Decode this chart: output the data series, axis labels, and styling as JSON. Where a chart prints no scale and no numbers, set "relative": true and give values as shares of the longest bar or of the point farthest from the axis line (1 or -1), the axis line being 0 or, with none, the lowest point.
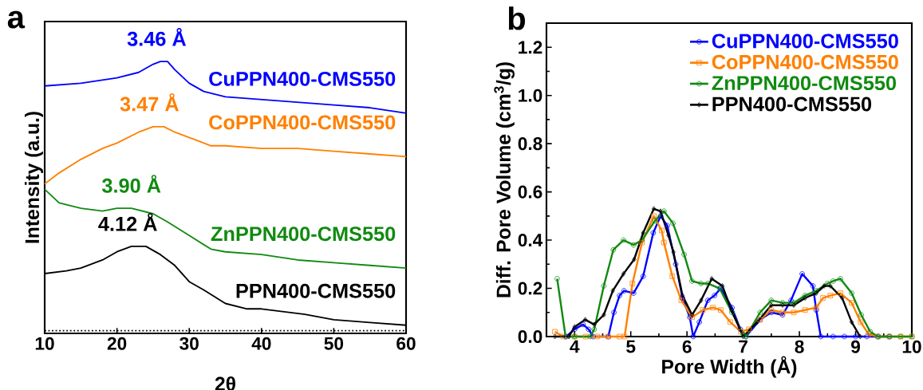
{
  "chart_data": [
    {
      "type": "line",
      "title": "a",
      "xlabel": "2θ",
      "ylabel": "Intensity (a.u.)",
      "relative": true,
      "xlim": [
        10,
        60
      ],
      "xticks": [
        10,
        20,
        30,
        40,
        50,
        60
      ],
      "legend": false,
      "marker": "none",
      "ref_lines": [
        {
          "axis": "y",
          "value": 0.01,
          "line_style": "dotted",
          "color": "#000000"
        }
      ],
      "series": [
        {
          "name": "CuPPN400-CMS550",
          "color": "#0000ff",
          "x": [
            10,
            15,
            20,
            23,
            25,
            26,
            27,
            28,
            30,
            32,
            35,
            40,
            45,
            50,
            55,
            60
          ],
          "values": [
            0.91,
            0.92,
            0.94,
            0.96,
            0.99,
            1.0,
            1.0,
            0.97,
            0.92,
            0.89,
            0.87,
            0.86,
            0.85,
            0.84,
            0.83,
            0.81
          ]
        },
        {
          "name": "CoPPN400-CMS550",
          "color": "#ff8000",
          "x": [
            10,
            12,
            15,
            18,
            20,
            23,
            25,
            26.5,
            28,
            30,
            33,
            35,
            40,
            45,
            50,
            55,
            60
          ],
          "values": [
            0.55,
            0.59,
            0.64,
            0.68,
            0.7,
            0.74,
            0.76,
            0.76,
            0.74,
            0.72,
            0.69,
            0.69,
            0.68,
            0.68,
            0.67,
            0.66,
            0.65
          ]
        },
        {
          "name": "ZnPPN400-CMS550",
          "color": "#108a10",
          "x": [
            10,
            12,
            15,
            18,
            20,
            22,
            25,
            27,
            30,
            33,
            35,
            40,
            45,
            50,
            55,
            60
          ],
          "values": [
            0.53,
            0.48,
            0.46,
            0.45,
            0.46,
            0.46,
            0.44,
            0.41,
            0.36,
            0.31,
            0.3,
            0.29,
            0.27,
            0.26,
            0.25,
            0.24
          ]
        },
        {
          "name": "PPN400-CMS550",
          "color": "#000000",
          "x": [
            10,
            13,
            15,
            18,
            20,
            22,
            24,
            26,
            28,
            30,
            32,
            35,
            38,
            40,
            43,
            46,
            50,
            55,
            60
          ],
          "values": [
            0.22,
            0.23,
            0.24,
            0.27,
            0.3,
            0.32,
            0.32,
            0.29,
            0.25,
            0.19,
            0.16,
            0.11,
            0.09,
            0.09,
            0.08,
            0.07,
            0.05,
            0.04,
            0.03
          ]
        }
      ],
      "annotations": [
        {
          "text": "3.46 Å",
          "x": 25.5,
          "y": 1.0
        },
        {
          "text": "3.47 Å",
          "x": 24.5,
          "y": 0.76
        },
        {
          "text": "3.90 Å",
          "x": 22,
          "y": 0.46
        },
        {
          "text": "4.12 Å",
          "x": 21.5,
          "y": 0.32
        }
      ]
    },
    {
      "type": "line",
      "title": "b",
      "xlabel": "Pore Width (Å)",
      "ylabel": "Diff. Pore Volume (cm$^{3}$/g)",
      "xlim": [
        3.5,
        10
      ],
      "ylim": [
        0,
        1.3
      ],
      "xticks": [
        4,
        5,
        6,
        7,
        8,
        9,
        10
      ],
      "yticks": [
        {
          "value": 0,
          "label": "0.0"
        },
        0.2,
        0.4,
        0.6,
        0.8,
        {
          "value": 1,
          "label": "1.0"
        },
        1.2
      ],
      "legend": "top right",
      "series": [
        {
          "name": "CuPPN400-CMS550",
          "color": "#0000ff",
          "marker": "circle",
          "x": [
            3.85,
            4.0,
            4.15,
            4.25,
            4.33,
            4.6,
            4.7,
            4.8,
            4.88,
            5.05,
            5.22,
            5.4,
            5.53,
            5.65,
            5.8,
            5.92,
            6.05,
            6.11,
            6.22,
            6.37,
            6.49,
            6.6,
            6.8,
            6.95,
            7.05,
            7.3,
            7.5,
            7.7,
            7.85,
            8.05,
            8.24,
            8.3,
            8.38,
            8.6,
            8.8,
            9.0,
            9.2,
            9.4,
            9.6
          ],
          "values": [
            0,
            0.03,
            0.05,
            0.03,
            0,
            0,
            0.1,
            0.17,
            0.19,
            0.18,
            0.25,
            0.43,
            0.5,
            0.46,
            0.3,
            0.16,
            0.08,
            0,
            0.06,
            0.15,
            0.17,
            0.2,
            0.12,
            0.03,
            0,
            0.07,
            0.1,
            0.09,
            0.15,
            0.26,
            0.21,
            0.11,
            0,
            0,
            0,
            0,
            0,
            0,
            0
          ]
        },
        {
          "name": "CoPPN400-CMS550",
          "color": "#ff8000",
          "marker": "square",
          "x": [
            3.65,
            3.8,
            4.0,
            4.2,
            4.4,
            4.6,
            4.8,
            4.89,
            5.03,
            5.2,
            5.41,
            5.55,
            5.59,
            5.74,
            5.9,
            6.09,
            6.28,
            6.46,
            6.6,
            6.77,
            6.96,
            7.1,
            7.3,
            7.5,
            7.7,
            7.9,
            8.1,
            8.3,
            8.42,
            8.55,
            8.73,
            8.93,
            9.09,
            9.23,
            9.4,
            9.6,
            9.8,
            10
          ],
          "values": [
            0.02,
            0,
            0,
            0,
            0,
            0,
            0,
            0,
            0.22,
            0.39,
            0.5,
            0.44,
            0.39,
            0.25,
            0.15,
            0.08,
            0.11,
            0.12,
            0.11,
            0.06,
            0.02,
            0.03,
            0.07,
            0.11,
            0.1,
            0.1,
            0.11,
            0.12,
            0.16,
            0.17,
            0.18,
            0.14,
            0.06,
            0.01,
            0,
            0,
            0,
            0
          ]
        },
        {
          "name": "ZnPPN400-CMS550",
          "color": "#108a10",
          "marker": "circle",
          "x": [
            3.69,
            3.84,
            4.0,
            4.28,
            4.35,
            4.52,
            4.69,
            4.87,
            5.05,
            5.2,
            5.43,
            5.59,
            5.75,
            5.95,
            6.09,
            6.25,
            6.37,
            6.58,
            6.8,
            7.0,
            7.05,
            7.3,
            7.5,
            7.7,
            7.9,
            8.1,
            8.3,
            8.5,
            8.6,
            8.73,
            8.93,
            9.1,
            9.26,
            9.4,
            9.6,
            9.8,
            10
          ],
          "values": [
            0.24,
            0,
            0,
            0,
            0.03,
            0.21,
            0.36,
            0.4,
            0.38,
            0.4,
            0.48,
            0.52,
            0.47,
            0.34,
            0.23,
            0.22,
            0.22,
            0.2,
            0.1,
            0.01,
            0,
            0.1,
            0.15,
            0.14,
            0.14,
            0.17,
            0.19,
            0.22,
            0.23,
            0.24,
            0.18,
            0.09,
            0.02,
            0,
            0,
            0,
            0
          ]
        },
        {
          "name": "PPN400-CMS550",
          "color": "#000000",
          "marker": "diamond",
          "x": [
            3.65,
            3.9,
            4.0,
            4.19,
            4.35,
            4.52,
            4.68,
            4.87,
            5.06,
            5.22,
            5.41,
            5.53,
            5.67,
            5.76,
            5.92,
            6.09,
            6.25,
            6.44,
            6.63,
            6.79,
            7.0,
            7.25,
            7.5,
            7.7,
            7.9,
            8.1,
            8.3,
            8.44,
            8.55,
            8.76,
            8.93,
            9.08
          ],
          "values": [
            0,
            0,
            0.04,
            0.07,
            0.05,
            0.09,
            0.19,
            0.26,
            0.32,
            0.43,
            0.53,
            0.52,
            0.42,
            0.35,
            0.17,
            0.09,
            0.15,
            0.24,
            0.21,
            0.11,
            0,
            0.06,
            0.13,
            0.13,
            0.13,
            0.16,
            0.18,
            0.21,
            0.21,
            0.16,
            0.06,
            0
          ]
        }
      ]
    }
  ]
}
